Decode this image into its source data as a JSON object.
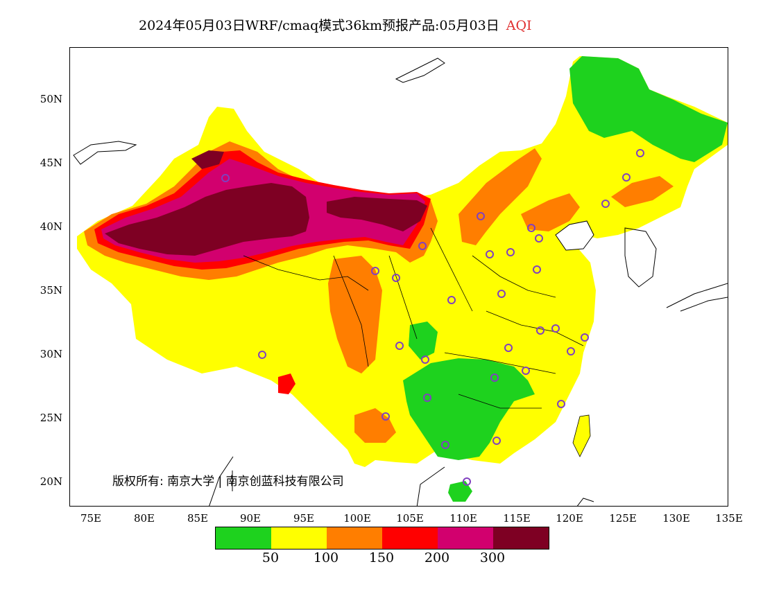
{
  "title": {
    "main": "2024年05月03日WRF/cmaq模式36km预报产品:05月03日",
    "product": "AQI"
  },
  "lat_labels": [
    "50N",
    "45N",
    "40N",
    "35N",
    "30N",
    "25N",
    "20N"
  ],
  "lon_labels": [
    "75E",
    "80E",
    "85E",
    "90E",
    "95E",
    "100E",
    "105E",
    "110E",
    "115E",
    "120E",
    "125E",
    "130E",
    "135E"
  ],
  "copyright": "版权所有: 南京大学 | 南京创蓝科技有限公司",
  "legend": {
    "colors": [
      "#1ed21e",
      "#ffff00",
      "#ff7e00",
      "#ff0000",
      "#d2006e",
      "#7e0023"
    ],
    "labels": [
      "50",
      "100",
      "150",
      "200",
      "300"
    ]
  },
  "map_colors": {
    "good": "#1ed21e",
    "moderate": "#ffff00",
    "sensitive": "#ff7e00",
    "unhealthy": "#ff0000",
    "very_unhealthy": "#d2006e",
    "hazardous": "#7e0023",
    "station_marker": "#8040c0"
  }
}
